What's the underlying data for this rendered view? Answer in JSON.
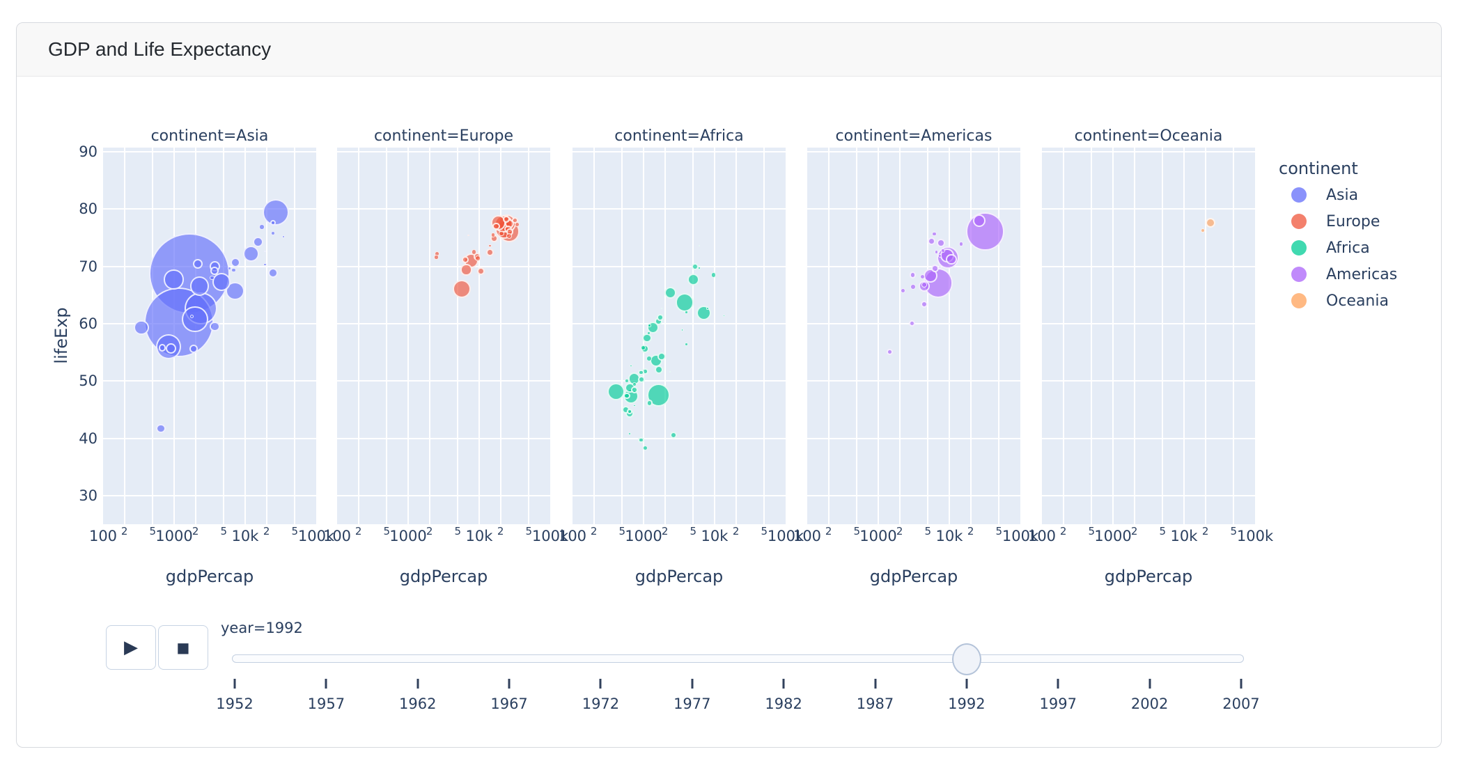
{
  "card": {
    "title": "GDP and Life Expectancy"
  },
  "colors": {
    "panel_bg": "#e5ecf6",
    "grid": "#ffffff",
    "text": "#2a3f5f",
    "marker_border": "rgba(255,255,255,0.85)",
    "marker_opacity": 0.65,
    "legend_swatch_opacity": 0.75
  },
  "chart_data": {
    "type": "scatter",
    "x_axis": {
      "label": "gdpPercap",
      "scale": "log",
      "range": [
        100,
        100000
      ],
      "ticks": [
        {
          "label": "100",
          "value": 100,
          "minor": false
        },
        {
          "label": "2",
          "value": 200,
          "minor": true
        },
        {
          "label": "5",
          "value": 500,
          "minor": true
        },
        {
          "label": "1000",
          "value": 1000,
          "minor": false
        },
        {
          "label": "2",
          "value": 2000,
          "minor": true
        },
        {
          "label": "5",
          "value": 5000,
          "minor": true
        },
        {
          "label": "10k",
          "value": 10000,
          "minor": false
        },
        {
          "label": "2",
          "value": 20000,
          "minor": true
        },
        {
          "label": "5",
          "value": 50000,
          "minor": true
        },
        {
          "label": "100k",
          "value": 100000,
          "minor": false
        }
      ]
    },
    "y_axis": {
      "label": "lifeExp",
      "range": [
        25.0,
        90.7
      ],
      "ticks": [
        90,
        80,
        70,
        60,
        50,
        40,
        30
      ]
    },
    "legend": {
      "title": "continent",
      "position": "right",
      "entries": [
        {
          "label": "Asia",
          "color": "#636EFA"
        },
        {
          "label": "Europe",
          "color": "#EF553B"
        },
        {
          "label": "Africa",
          "color": "#00CC96"
        },
        {
          "label": "Americas",
          "color": "#AB63FA"
        },
        {
          "label": "Oceania",
          "color": "#FFA15A"
        }
      ]
    },
    "size_by": "pop",
    "point_format": [
      "gdpPercap",
      "lifeExp",
      "pop_millions"
    ],
    "size": {
      "max_pop_millions": 1164,
      "max_radius_px": 58
    },
    "facets": [
      {
        "title": "continent=Asia",
        "continent": "Asia",
        "points": [
          [
            649,
            41.7,
            16.3
          ],
          [
            19036,
            72.6,
            0.53
          ],
          [
            838,
            56.0,
            113.7
          ],
          [
            682,
            55.8,
            10.2
          ],
          [
            1656,
            68.7,
            1164
          ],
          [
            24758,
            77.6,
            5.8
          ],
          [
            1164,
            60.2,
            872
          ],
          [
            2383,
            62.7,
            184.8
          ],
          [
            7236,
            65.7,
            60.4
          ],
          [
            3746,
            59.5,
            17.9
          ],
          [
            17122,
            76.9,
            4.9
          ],
          [
            26825,
            79.4,
            124.3
          ],
          [
            3432,
            68.0,
            3.9
          ],
          [
            3726,
            70.0,
            20.7
          ],
          [
            12104,
            72.2,
            43.8
          ],
          [
            34933,
            75.2,
            1.4
          ],
          [
            6891,
            69.3,
            3.2
          ],
          [
            7278,
            70.7,
            18.3
          ],
          [
            1785,
            61.3,
            2.3
          ],
          [
            347,
            59.3,
            40.5
          ],
          [
            898,
            55.7,
            20.3
          ],
          [
            18955,
            70.3,
            1.9
          ],
          [
            1972,
            60.8,
            120.1
          ],
          [
            2279,
            66.5,
            67.2
          ],
          [
            24841,
            68.8,
            16.9
          ],
          [
            24770,
            75.8,
            3.2
          ],
          [
            2154,
            70.4,
            17.6
          ],
          [
            3726,
            69.2,
            13.2
          ],
          [
            15216,
            74.3,
            20.5
          ],
          [
            4617,
            67.3,
            56.7
          ],
          [
            989,
            67.7,
            69.3
          ],
          [
            6018,
            69.7,
            2.1
          ],
          [
            1880,
            55.6,
            13.4
          ]
        ]
      },
      {
        "title": "continent=Europe",
        "continent": "Europe",
        "points": [
          [
            2497,
            71.6,
            3.3
          ],
          [
            27042,
            76.0,
            7.9
          ],
          [
            25576,
            76.5,
            10.0
          ],
          [
            2547,
            72.2,
            4.3
          ],
          [
            6303,
            71.2,
            8.7
          ],
          [
            8448,
            72.5,
            4.5
          ],
          [
            14297,
            72.4,
            10.3
          ],
          [
            26407,
            75.3,
            5.2
          ],
          [
            20647,
            75.7,
            5.0
          ],
          [
            24704,
            77.5,
            57.4
          ],
          [
            26505,
            76.1,
            80.6
          ],
          [
            17542,
            77.0,
            10.3
          ],
          [
            10536,
            69.2,
            10.3
          ],
          [
            25144,
            78.8,
            0.26
          ],
          [
            15759,
            75.5,
            3.6
          ],
          [
            22014,
            77.4,
            56.8
          ],
          [
            7003,
            75.4,
            0.62
          ],
          [
            26791,
            77.4,
            15.2
          ],
          [
            33966,
            77.3,
            4.3
          ],
          [
            7739,
            71.0,
            38.4
          ],
          [
            16207,
            74.9,
            9.9
          ],
          [
            6598,
            69.4,
            22.8
          ],
          [
            9325,
            71.7,
            9.8
          ],
          [
            9498,
            71.4,
            5.3
          ],
          [
            14215,
            73.6,
            2.0
          ],
          [
            18603,
            77.6,
            39.6
          ],
          [
            23880,
            78.2,
            8.7
          ],
          [
            31872,
            78.0,
            7.0
          ],
          [
            5678,
            66.1,
            58.2
          ],
          [
            22705,
            76.4,
            57.9
          ]
        ]
      },
      {
        "title": "continent=Africa",
        "continent": "Africa",
        "points": [
          [
            5023,
            67.7,
            26.3
          ],
          [
            2628,
            40.6,
            8.7
          ],
          [
            1191,
            53.9,
            5.0
          ],
          [
            7954,
            62.7,
            1.3
          ],
          [
            932,
            50.3,
            8.9
          ],
          [
            632,
            44.7,
            5.8
          ],
          [
            1793,
            54.3,
            12.5
          ],
          [
            748,
            49.4,
            3.2
          ],
          [
            1058,
            51.7,
            6.4
          ],
          [
            1247,
            57.9,
            0.45
          ],
          [
            672,
            47.4,
            41.3
          ],
          [
            4016,
            56.4,
            2.4
          ],
          [
            1648,
            52.0,
            12.8
          ],
          [
            2377,
            51.6,
            0.38
          ],
          [
            3795,
            63.7,
            59.4
          ],
          [
            1132,
            47.5,
            0.39
          ],
          [
            579,
            50.0,
            3.7
          ],
          [
            408,
            48.1,
            55.2
          ],
          [
            13522,
            61.4,
            1.0
          ],
          [
            666,
            52.6,
            1.0
          ],
          [
            1112,
            57.5,
            16.3
          ],
          [
            928,
            51.5,
            6.4
          ],
          [
            746,
            45.7,
            1.05
          ],
          [
            1342,
            59.3,
            25.0
          ],
          [
            1211,
            59.7,
            1.8
          ],
          [
            637,
            40.8,
            1.9
          ],
          [
            9640,
            68.5,
            4.4
          ],
          [
            1041,
            55.6,
            12.2
          ],
          [
            563,
            45.0,
            10.0
          ],
          [
            739,
            48.4,
            8.4
          ],
          [
            1191,
            58.3,
            2.1
          ],
          [
            6058,
            69.7,
            1.1
          ],
          [
            2378,
            65.4,
            25.8
          ],
          [
            634,
            44.3,
            13.2
          ],
          [
            3999,
            62.0,
            1.55
          ],
          [
            581,
            47.4,
            8.3
          ],
          [
            1620,
            47.5,
            93.4
          ],
          [
            6101,
            73.6,
            0.62
          ],
          [
            1774,
            62.7,
            0.13
          ],
          [
            1712,
            61.1,
            8.1
          ],
          [
            1069,
            38.3,
            4.3
          ],
          [
            927,
            39.7,
            6.1
          ],
          [
            7062,
            61.9,
            39.3
          ],
          [
            1492,
            53.6,
            28.2
          ],
          [
            3512,
            58.9,
            0.85
          ],
          [
            740,
            50.4,
            26.6
          ],
          [
            982,
            55.8,
            3.8
          ],
          [
            5320,
            70.0,
            8.5
          ],
          [
            644,
            48.8,
            18.7
          ],
          [
            1211,
            46.1,
            8.0
          ],
          [
            1616,
            60.4,
            10.7
          ]
        ]
      },
      {
        "title": "continent=Americas",
        "continent": "Americas",
        "points": [
          [
            9308,
            71.9,
            33.9
          ],
          [
            2962,
            60.0,
            6.9
          ],
          [
            6950,
            67.1,
            155.0
          ],
          [
            26343,
            78.0,
            28.5
          ],
          [
            7596,
            74.1,
            13.6
          ],
          [
            5445,
            68.4,
            34.2
          ],
          [
            6160,
            75.7,
            3.2
          ],
          [
            5593,
            74.4,
            10.7
          ],
          [
            3044,
            68.5,
            7.6
          ],
          [
            6322,
            69.6,
            10.7
          ],
          [
            4444,
            66.8,
            5.3
          ],
          [
            4439,
            63.4,
            9.3
          ],
          [
            1456,
            55.1,
            6.9
          ],
          [
            3082,
            66.4,
            5.1
          ],
          [
            7405,
            71.8,
            2.4
          ],
          [
            9472,
            71.5,
            88.1
          ],
          [
            2253,
            65.8,
            4.2
          ],
          [
            6619,
            72.5,
            2.5
          ],
          [
            4196,
            68.2,
            4.5
          ],
          [
            4446,
            66.5,
            22.4
          ],
          [
            14642,
            73.9,
            3.6
          ],
          [
            7371,
            69.9,
            1.2
          ],
          [
            32004,
            76.1,
            256.9
          ],
          [
            8137,
            72.8,
            3.2
          ],
          [
            10734,
            71.2,
            20.7
          ]
        ]
      },
      {
        "title": "continent=Oceania",
        "continent": "Oceania",
        "points": [
          [
            23425,
            77.6,
            17.5
          ],
          [
            18363,
            76.3,
            3.4
          ]
        ]
      }
    ]
  },
  "animation": {
    "frame_label": "year=1992",
    "current_year": 1992,
    "play_icon": "▶",
    "stop_icon": "■",
    "slider_years": [
      1952,
      1957,
      1962,
      1967,
      1972,
      1977,
      1982,
      1987,
      1992,
      1997,
      2002,
      2007
    ]
  }
}
